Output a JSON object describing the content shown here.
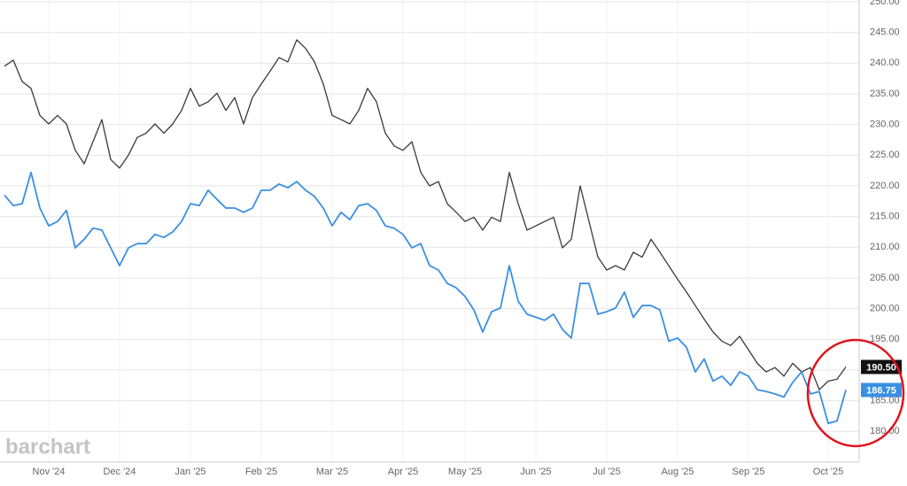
{
  "chart_data": {
    "type": "line",
    "watermark": "barchart",
    "categories": [
      null,
      null,
      null,
      null,
      null,
      "Nov '24",
      null,
      null,
      null,
      null,
      null,
      null,
      null,
      "Dec '24",
      null,
      null,
      null,
      null,
      null,
      null,
      null,
      "Jan '25",
      null,
      null,
      null,
      null,
      null,
      null,
      null,
      "Feb '25",
      null,
      null,
      null,
      null,
      null,
      null,
      null,
      "Mar '25",
      null,
      null,
      null,
      null,
      null,
      null,
      null,
      "Apr '25",
      null,
      null,
      null,
      null,
      null,
      null,
      "May '25",
      null,
      null,
      null,
      null,
      null,
      null,
      null,
      "Jun '25",
      null,
      null,
      null,
      null,
      null,
      null,
      null,
      "Jul '25",
      null,
      null,
      null,
      null,
      null,
      null,
      null,
      "Aug '25",
      null,
      null,
      null,
      null,
      null,
      null,
      null,
      "Sep '25",
      null,
      null,
      null,
      null,
      null,
      null,
      null,
      null,
      "Oct '25",
      null,
      null
    ],
    "series": [
      {
        "color": "#3a3a3a",
        "values": [
          239.5,
          240.5,
          237.0,
          235.9,
          231.5,
          230.1,
          231.5,
          230.1,
          225.8,
          223.6,
          227.2,
          230.8,
          224.3,
          222.9,
          225.0,
          227.9,
          228.6,
          230.1,
          228.6,
          230.1,
          232.3,
          235.9,
          233.0,
          233.7,
          235.1,
          232.3,
          234.4,
          230.1,
          234.4,
          236.6,
          238.7,
          240.9,
          240.2,
          243.8,
          242.4,
          240.2,
          236.6,
          231.5,
          230.8,
          230.1,
          232.3,
          235.9,
          233.7,
          228.6,
          226.5,
          225.8,
          227.2,
          222.2,
          220.0,
          220.7,
          217.1,
          215.7,
          214.2,
          214.9,
          212.8,
          214.9,
          214.2,
          222.2,
          217.1,
          212.8,
          213.5,
          214.2,
          214.9,
          209.9,
          211.3,
          220.0,
          214.2,
          208.4,
          206.3,
          207.0,
          206.3,
          209.2,
          208.4,
          211.3,
          209.2,
          207.0,
          204.8,
          202.7,
          200.5,
          198.3,
          196.2,
          194.7,
          194.0,
          195.5,
          193.3,
          191.1,
          189.7,
          190.4,
          189.0,
          191.1,
          189.7,
          190.4,
          186.8,
          188.2,
          188.5,
          190.5
        ],
        "value_labels": [
          null,
          null,
          null,
          null,
          null,
          null,
          null,
          null,
          null,
          null,
          null,
          null,
          null,
          null,
          null,
          null,
          null,
          null,
          null,
          null,
          null,
          null,
          null,
          null,
          null,
          null,
          null,
          null,
          null,
          null,
          null,
          null,
          null,
          null,
          null,
          null,
          null,
          null,
          null,
          null,
          null,
          null,
          null,
          null,
          null,
          null,
          null,
          null,
          null,
          null,
          null,
          null,
          null,
          null,
          null,
          null,
          null,
          null,
          null,
          null,
          null,
          null,
          null,
          null,
          null,
          null,
          null,
          null,
          null,
          null,
          null,
          null,
          null,
          null,
          null,
          null,
          null,
          null,
          null,
          null,
          null,
          null,
          null,
          null,
          null,
          null,
          null,
          null,
          null,
          null,
          null,
          null,
          null,
          null,
          null,
          "190.50"
        ]
      },
      {
        "color": "#3b8fe3",
        "values": [
          218.5,
          216.8,
          217.1,
          222.2,
          216.4,
          213.5,
          214.2,
          216.0,
          209.9,
          211.3,
          213.1,
          212.8,
          209.9,
          207.0,
          209.9,
          210.6,
          210.6,
          212.1,
          211.6,
          212.5,
          214.2,
          217.1,
          216.8,
          219.3,
          217.8,
          216.4,
          216.4,
          215.7,
          216.4,
          219.3,
          219.3,
          220.3,
          219.7,
          220.7,
          219.3,
          218.3,
          216.4,
          213.5,
          215.7,
          214.5,
          216.8,
          217.1,
          216.0,
          213.5,
          213.1,
          212.1,
          209.9,
          210.6,
          207.0,
          206.3,
          204.1,
          203.4,
          202.0,
          199.8,
          196.2,
          199.5,
          200.1,
          207.0,
          201.2,
          199.1,
          198.6,
          198.1,
          199.1,
          196.6,
          195.2,
          204.1,
          204.1,
          199.1,
          199.5,
          200.1,
          202.7,
          198.6,
          200.5,
          200.5,
          199.8,
          194.7,
          195.2,
          193.7,
          189.7,
          191.8,
          188.2,
          189.0,
          187.5,
          189.7,
          189.0,
          186.8,
          186.5,
          186.1,
          185.6,
          188.0,
          189.7,
          186.1,
          186.5,
          181.3,
          181.7,
          186.75
        ],
        "value_labels": [
          null,
          null,
          null,
          null,
          null,
          null,
          null,
          null,
          null,
          null,
          null,
          null,
          null,
          null,
          null,
          null,
          null,
          null,
          null,
          null,
          null,
          null,
          null,
          null,
          null,
          null,
          null,
          null,
          null,
          null,
          null,
          null,
          null,
          null,
          null,
          null,
          null,
          null,
          null,
          null,
          null,
          null,
          null,
          null,
          null,
          null,
          null,
          null,
          null,
          null,
          null,
          null,
          null,
          null,
          null,
          null,
          null,
          null,
          null,
          null,
          null,
          null,
          null,
          null,
          null,
          null,
          null,
          null,
          null,
          null,
          null,
          null,
          null,
          null,
          null,
          null,
          null,
          null,
          null,
          null,
          null,
          null,
          null,
          null,
          null,
          null,
          null,
          null,
          null,
          null,
          null,
          null,
          null,
          null,
          null,
          "186.75"
        ]
      }
    ],
    "ylim": [
      175,
      250
    ],
    "yticks": [
      {
        "value": 180,
        "label": "180.00"
      },
      {
        "value": 185,
        "label": "185.00"
      },
      {
        "value": 190,
        "label": "190.00"
      },
      {
        "value": 195,
        "label": "195.00"
      },
      {
        "value": 200,
        "label": "200.00"
      },
      {
        "value": 205,
        "label": "205.00"
      },
      {
        "value": 210,
        "label": "210.00"
      },
      {
        "value": 215,
        "label": "215.00"
      },
      {
        "value": 220,
        "label": "220.00"
      },
      {
        "value": 225,
        "label": "225.00"
      },
      {
        "value": 230,
        "label": "230.00"
      },
      {
        "value": 235,
        "label": "235.00"
      },
      {
        "value": 240,
        "label": "240.00"
      },
      {
        "value": 245,
        "label": "245.00"
      },
      {
        "value": 250,
        "label": "250.00"
      }
    ],
    "grid": true
  }
}
